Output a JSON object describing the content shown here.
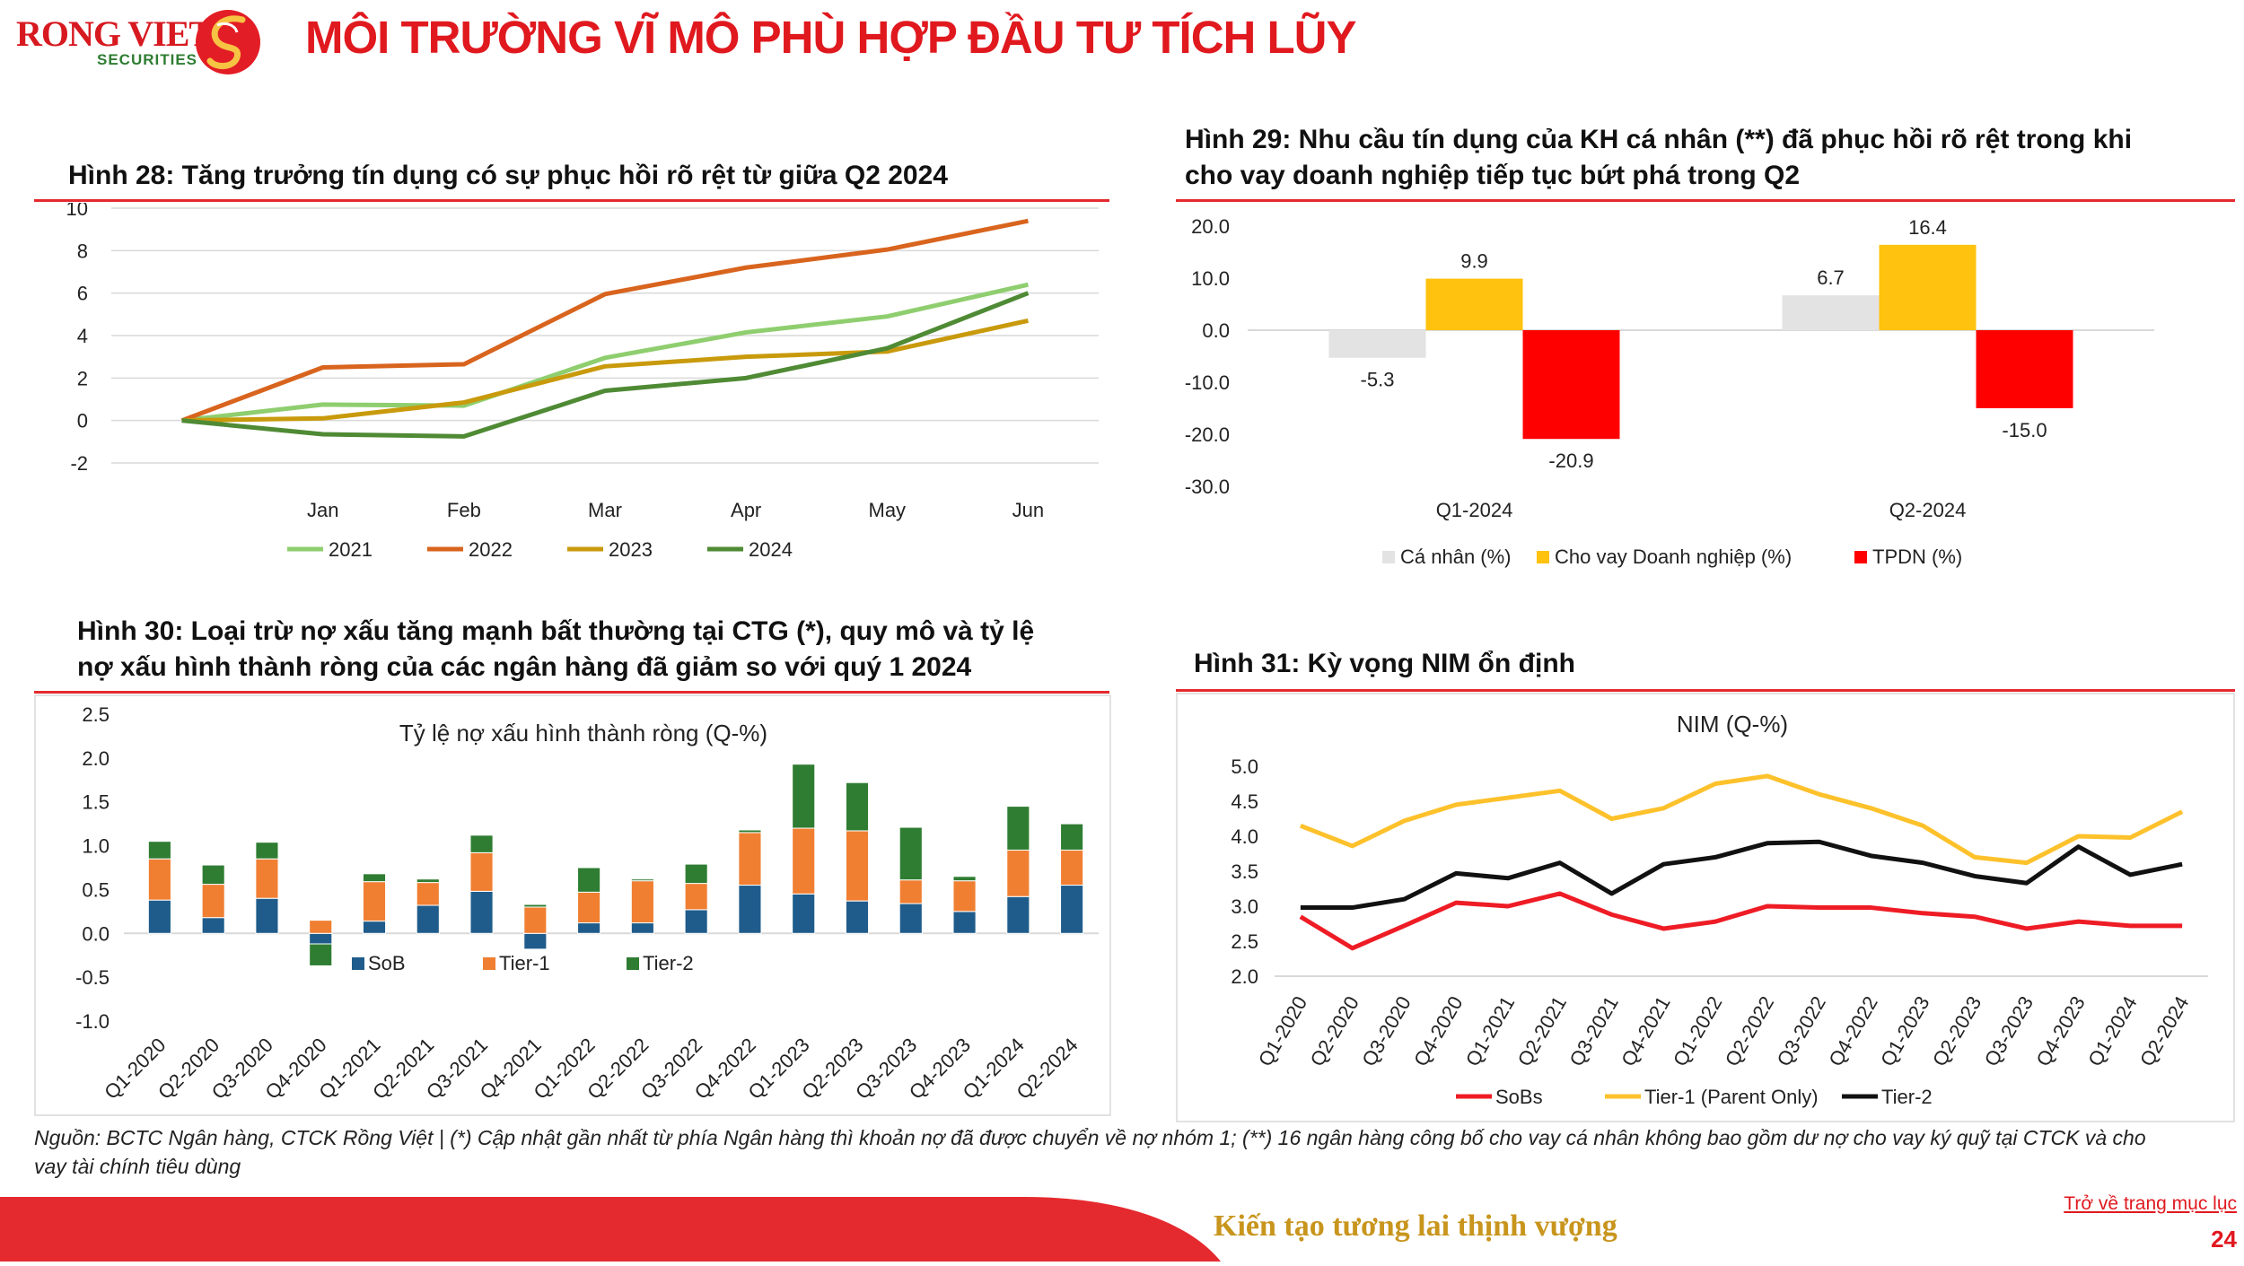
{
  "brand": {
    "name": "RONG VIET",
    "sub": "SECURITIES"
  },
  "page_title": "MÔI TRƯỜNG VĨ MÔ PHÙ HỢP ĐẦU TƯ TÍCH LŨY",
  "colors": {
    "accent": "#e0191f",
    "rule": "#e52a2f",
    "tagline": "#c8951d"
  },
  "fig28": {
    "title": "Hình 28: Tăng trưởng tín dụng có sự phục hồi rõ rệt từ giữa Q2 2024",
    "chart_data": {
      "type": "line",
      "x": [
        "",
        "Jan",
        "Feb",
        "Mar",
        "Apr",
        "May",
        "Jun"
      ],
      "ylim": [
        -2,
        10
      ],
      "yticks": [
        -2,
        0,
        2,
        4,
        6,
        8,
        10
      ],
      "grid": true,
      "legend": "bottom",
      "series": [
        {
          "name": "2021",
          "color": "#8fce6f",
          "values": [
            0,
            0.75,
            0.7,
            2.95,
            4.15,
            4.9,
            6.4
          ]
        },
        {
          "name": "2022",
          "color": "#d8641e",
          "values": [
            0,
            2.5,
            2.65,
            5.95,
            7.2,
            8.05,
            9.4
          ]
        },
        {
          "name": "2023",
          "color": "#c89a0c",
          "values": [
            0,
            0.1,
            0.85,
            2.55,
            3.0,
            3.25,
            4.7
          ]
        },
        {
          "name": "2024",
          "color": "#4f8a34",
          "values": [
            0,
            -0.65,
            -0.75,
            1.4,
            2.0,
            3.4,
            6.0
          ]
        }
      ]
    }
  },
  "fig29": {
    "title": "Hình 29: Nhu cầu tín dụng của KH cá nhân (**) đã phục hồi rõ rệt trong khi cho vay doanh nghiệp tiếp tục bứt phá trong Q2",
    "title_line1": "Hình 29: Nhu cầu tín dụng của KH cá nhân (**) đã phục hồi rõ rệt trong khi",
    "title_line2": "cho vay doanh nghiệp tiếp tục bứt phá trong Q2",
    "chart_data": {
      "type": "bar",
      "categories": [
        "Q1-2024",
        "Q2-2024"
      ],
      "ylim": [
        -30,
        20
      ],
      "yticks": [
        "20.0",
        "10.0",
        "0.0",
        "-10.0",
        "-20.0",
        "-30.0"
      ],
      "legend": "bottom",
      "series": [
        {
          "name": "Cá nhân (%)",
          "color": "#e3e3e3",
          "values": [
            -5.3,
            6.7
          ],
          "labels": [
            "-5.3",
            "6.7"
          ]
        },
        {
          "name": "Cho vay Doanh nghiệp (%)",
          "color": "#ffc20e",
          "values": [
            9.9,
            16.4
          ],
          "labels": [
            "9.9",
            "16.4"
          ]
        },
        {
          "name": "TPDN (%)",
          "color": "#ff0000",
          "values": [
            -20.9,
            -15.0
          ],
          "labels": [
            "-20.9",
            "-15.0"
          ]
        }
      ]
    }
  },
  "fig30": {
    "title": "Hình 30: Loại trừ nợ xấu tăng mạnh bất thường tại CTG (*), quy mô và tỷ lệ nợ xấu hình thành ròng của các ngân hàng đã giảm so với quý 1 2024",
    "title_line1": "Hình 30: Loại trừ nợ xấu tăng mạnh bất thường tại CTG (*), quy mô và tỷ lệ",
    "title_line2": "nợ xấu hình thành ròng của các ngân hàng đã giảm so với quý 1 2024",
    "chart_data": {
      "type": "bar",
      "stacked": true,
      "title": "Tỷ lệ nợ xấu hình thành ròng (Q-%)",
      "categories": [
        "Q1-2020",
        "Q2-2020",
        "Q3-2020",
        "Q4-2020",
        "Q1-2021",
        "Q2-2021",
        "Q3-2021",
        "Q4-2021",
        "Q1-2022",
        "Q2-2022",
        "Q3-2022",
        "Q4-2022",
        "Q1-2023",
        "Q2-2023",
        "Q3-2023",
        "Q4-2023",
        "Q1-2024",
        "Q2-2024"
      ],
      "ylim": [
        -1.0,
        2.5
      ],
      "yticks": [
        "2.5",
        "2.0",
        "1.5",
        "1.0",
        "0.5",
        "0.0",
        "-0.5",
        "-1.0"
      ],
      "legend": "inside-bottom",
      "series": [
        {
          "name": "SoB",
          "color": "#1f5c8b",
          "values": [
            0.38,
            0.18,
            0.4,
            -0.12,
            0.14,
            0.32,
            0.48,
            -0.18,
            0.12,
            0.12,
            0.27,
            0.55,
            0.45,
            0.37,
            0.34,
            0.25,
            0.42,
            0.55
          ]
        },
        {
          "name": "Tier-1",
          "color": "#f07f32",
          "values": [
            0.47,
            0.38,
            0.45,
            0.15,
            0.45,
            0.26,
            0.44,
            0.3,
            0.35,
            0.48,
            0.3,
            0.6,
            0.75,
            0.8,
            0.27,
            0.35,
            0.53,
            0.4
          ]
        },
        {
          "name": "Tier-2",
          "color": "#2f7d32",
          "values": [
            0.2,
            0.22,
            0.19,
            -0.25,
            0.09,
            0.04,
            0.2,
            0.03,
            0.28,
            0.02,
            0.22,
            0.03,
            0.73,
            0.55,
            0.6,
            0.05,
            0.5,
            0.3
          ]
        }
      ]
    }
  },
  "fig31": {
    "title": "Hình 31: Kỳ vọng NIM ổn định",
    "chart_data": {
      "type": "line",
      "title": "NIM (Q-%)",
      "categories": [
        "Q1-2020",
        "Q2-2020",
        "Q3-2020",
        "Q4-2020",
        "Q1-2021",
        "Q2-2021",
        "Q3-2021",
        "Q4-2021",
        "Q1-2022",
        "Q2-2022",
        "Q3-2022",
        "Q4-2022",
        "Q1-2023",
        "Q2-2023",
        "Q3-2023",
        "Q4-2023",
        "Q1-2024",
        "Q2-2024"
      ],
      "ylim": [
        2.0,
        5.0
      ],
      "yticks": [
        "5.0",
        "4.5",
        "4.0",
        "3.5",
        "3.0",
        "2.5",
        "2.0"
      ],
      "legend": "bottom",
      "series": [
        {
          "name": "SoBs",
          "color": "#ee1c25",
          "values": [
            2.85,
            2.4,
            2.72,
            3.05,
            3.0,
            3.18,
            2.88,
            2.68,
            2.78,
            3.0,
            2.98,
            2.98,
            2.9,
            2.85,
            2.68,
            2.78,
            2.72,
            2.72
          ]
        },
        {
          "name": "Tier-1 (Parent Only)",
          "color": "#fdc12b",
          "values": [
            4.15,
            3.86,
            4.22,
            4.45,
            4.55,
            4.65,
            4.25,
            4.4,
            4.75,
            4.86,
            4.6,
            4.4,
            4.15,
            3.7,
            3.62,
            4.0,
            3.98,
            4.35
          ]
        },
        {
          "name": "Tier-2",
          "color": "#111111",
          "values": [
            2.98,
            2.98,
            3.1,
            3.47,
            3.4,
            3.62,
            3.18,
            3.6,
            3.7,
            3.9,
            3.92,
            3.72,
            3.62,
            3.43,
            3.33,
            3.85,
            3.45,
            3.6
          ]
        }
      ]
    }
  },
  "footer": {
    "source": "Nguồn: BCTC Ngân hàng, CTCK Rồng Việt | (*) Cập nhật gần nhất từ phía Ngân hàng thì khoản nợ đã được chuyển về nợ nhóm 1; (**) 16 ngân hàng công bố cho vay cá nhân không bao gồm dư nợ cho vay ký quỹ tại CTCK và cho vay tài chính tiêu dùng",
    "tagline": "Kiến tạo tương lai thịnh vượng",
    "back_link": "Trở về trang mục lục",
    "page_number": "24"
  }
}
